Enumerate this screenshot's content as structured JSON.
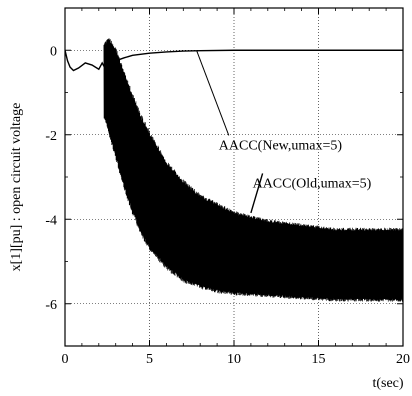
{
  "chart_data": {
    "type": "line",
    "title": "",
    "xlabel": "t(sec)",
    "ylabel": "x[1][pu] : open circuit voltage",
    "xlim": [
      0,
      20
    ],
    "ylim": [
      -7,
      1
    ],
    "xticks": [
      0,
      5,
      10,
      15,
      20
    ],
    "yticks": [
      0,
      -2,
      -4,
      -6
    ],
    "grid": true,
    "series": [
      {
        "name": "AACC(New,umax=5)",
        "style": "line",
        "x": [
          0,
          0.15,
          0.3,
          0.5,
          0.8,
          1.2,
          1.6,
          2.0,
          2.2,
          2.4,
          2.6,
          2.8,
          3.0,
          3.5,
          4.0,
          5.0,
          6.0,
          7.0,
          8.0,
          10.0,
          12.0,
          15.0,
          20.0
        ],
        "y": [
          0,
          -0.25,
          -0.4,
          -0.48,
          -0.42,
          -0.3,
          -0.35,
          -0.45,
          -0.3,
          -0.45,
          -0.38,
          -0.3,
          -0.25,
          -0.18,
          -0.12,
          -0.07,
          -0.04,
          -0.02,
          -0.01,
          0,
          0,
          0,
          0
        ]
      },
      {
        "name": "AACC(Old,umax=5)",
        "style": "oscillation-band",
        "t": [
          2.3,
          2.6,
          3.0,
          3.5,
          4.0,
          4.5,
          5.0,
          6.0,
          7.0,
          8.0,
          9.0,
          10.0,
          12.0,
          14.0,
          16.0,
          18.0,
          20.0
        ],
        "upper": [
          0.2,
          0.3,
          0.1,
          -0.5,
          -1.0,
          -1.5,
          -1.9,
          -2.6,
          -3.05,
          -3.4,
          -3.6,
          -3.8,
          -4.0,
          -4.1,
          -4.2,
          -4.2,
          -4.2
        ],
        "lower": [
          -1.6,
          -2.0,
          -2.6,
          -3.3,
          -3.9,
          -4.4,
          -4.75,
          -5.2,
          -5.5,
          -5.65,
          -5.75,
          -5.8,
          -5.85,
          -5.9,
          -5.95,
          -5.95,
          -5.95
        ]
      }
    ],
    "annotations": [
      {
        "text": "AACC(New,umax=5)",
        "points_to": [
          7.8,
          -0.02
        ],
        "anchor": [
          9.1,
          -2.3
        ]
      },
      {
        "text": "AACC(Old,umax=5)",
        "points_to": [
          11.0,
          -3.85
        ],
        "anchor": [
          11.1,
          -3.2
        ]
      }
    ]
  }
}
